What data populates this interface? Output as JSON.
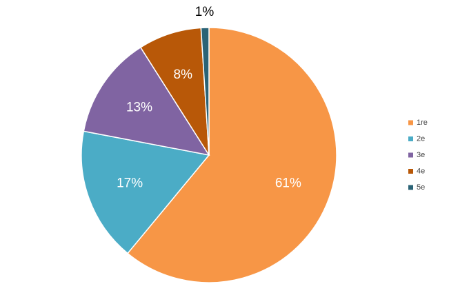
{
  "chart_data": {
    "type": "pie",
    "categories": [
      "1re",
      "2e",
      "3e",
      "4e",
      "5e"
    ],
    "values": [
      61,
      17,
      13,
      8,
      1
    ],
    "value_labels": [
      "61%",
      "17%",
      "13%",
      "8%",
      "1%"
    ],
    "colors": [
      "#f79646",
      "#4bacc6",
      "#8064a2",
      "#b85808",
      "#2b6376"
    ],
    "legend": "right"
  }
}
